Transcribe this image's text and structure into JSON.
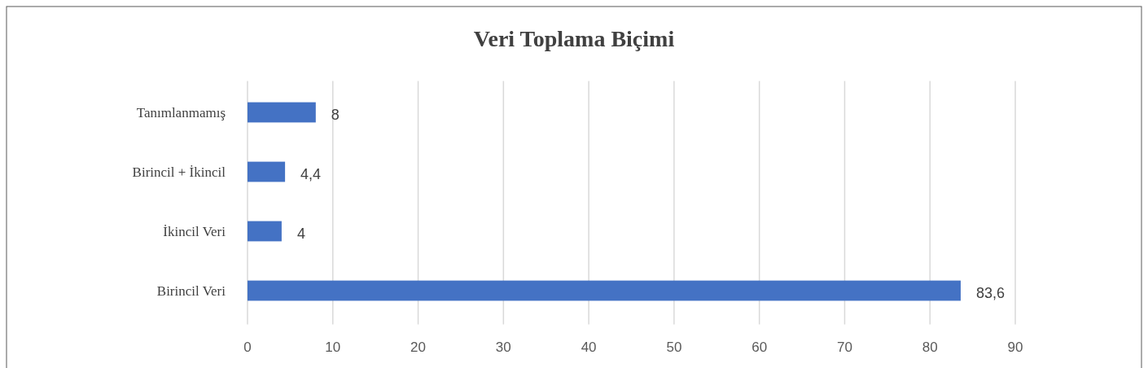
{
  "chart_data": {
    "type": "bar",
    "orientation": "horizontal",
    "title": "Veri Toplama Biçimi",
    "categories": [
      "Tanımlanmamış",
      "Birincil + İkincil",
      "İkincil Veri",
      "Birincil Veri"
    ],
    "values": [
      8,
      4.4,
      4,
      83.6
    ],
    "value_labels": [
      "8",
      "4,4",
      "4",
      "83,6"
    ],
    "color": "#4472c4",
    "xlim": [
      0,
      90
    ],
    "xticks": [
      0,
      10,
      20,
      30,
      40,
      50,
      60,
      70,
      80,
      90
    ],
    "grid": "x"
  }
}
